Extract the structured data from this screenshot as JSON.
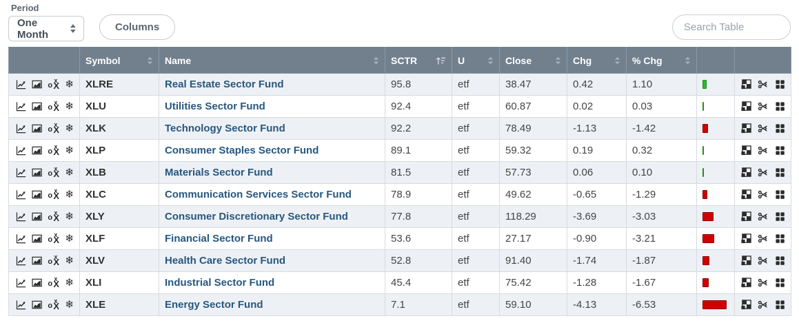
{
  "controls": {
    "period_label": "Period",
    "period_value": "One Month",
    "columns_button": "Columns",
    "search_placeholder": "Search Table"
  },
  "table": {
    "columns": [
      "Symbol",
      "Name",
      "SCTR",
      "U",
      "Close",
      "Chg",
      "% Chg"
    ],
    "sorted_by": "SCTR",
    "rows": [
      {
        "symbol": "XLRE",
        "name": "Real Estate Sector Fund",
        "sctr": "95.8",
        "u": "etf",
        "close": "38.47",
        "chg": "0.42",
        "pct_chg": "1.10"
      },
      {
        "symbol": "XLU",
        "name": "Utilities Sector Fund",
        "sctr": "92.4",
        "u": "etf",
        "close": "60.87",
        "chg": "0.02",
        "pct_chg": "0.03"
      },
      {
        "symbol": "XLK",
        "name": "Technology Sector Fund",
        "sctr": "92.2",
        "u": "etf",
        "close": "78.49",
        "chg": "-1.13",
        "pct_chg": "-1.42"
      },
      {
        "symbol": "XLP",
        "name": "Consumer Staples Sector Fund",
        "sctr": "89.1",
        "u": "etf",
        "close": "59.32",
        "chg": "0.19",
        "pct_chg": "0.32"
      },
      {
        "symbol": "XLB",
        "name": "Materials Sector Fund",
        "sctr": "81.5",
        "u": "etf",
        "close": "57.73",
        "chg": "0.06",
        "pct_chg": "0.10"
      },
      {
        "symbol": "XLC",
        "name": "Communication Services Sector Fund",
        "sctr": "78.9",
        "u": "etf",
        "close": "49.62",
        "chg": "-0.65",
        "pct_chg": "-1.29"
      },
      {
        "symbol": "XLY",
        "name": "Consumer Discretionary Sector Fund",
        "sctr": "77.8",
        "u": "etf",
        "close": "118.29",
        "chg": "-3.69",
        "pct_chg": "-3.03"
      },
      {
        "symbol": "XLF",
        "name": "Financial Sector Fund",
        "sctr": "53.6",
        "u": "etf",
        "close": "27.17",
        "chg": "-0.90",
        "pct_chg": "-3.21"
      },
      {
        "symbol": "XLV",
        "name": "Health Care Sector Fund",
        "sctr": "52.8",
        "u": "etf",
        "close": "91.40",
        "chg": "-1.74",
        "pct_chg": "-1.87"
      },
      {
        "symbol": "XLI",
        "name": "Industrial Sector Fund",
        "sctr": "45.4",
        "u": "etf",
        "close": "75.42",
        "chg": "-1.28",
        "pct_chg": "-1.67"
      },
      {
        "symbol": "XLE",
        "name": "Energy Sector Fund",
        "sctr": "7.1",
        "u": "etf",
        "close": "59.10",
        "chg": "-4.13",
        "pct_chg": "-6.53"
      }
    ]
  },
  "icons": {
    "row_tools": [
      "line-chart",
      "area-chart",
      "pnf-chart",
      "seasonality"
    ],
    "row_actions": [
      "gallery-view",
      "share",
      "chart-grid"
    ],
    "header_sort_active": "sort-amount",
    "header_sort": "up-down-chevrons"
  },
  "colors": {
    "header_bg": "#72808e",
    "stripe_bg": "#edf1f5",
    "link": "#27577f",
    "positive_bar": "#2db92d",
    "negative_bar": "#d10000"
  }
}
